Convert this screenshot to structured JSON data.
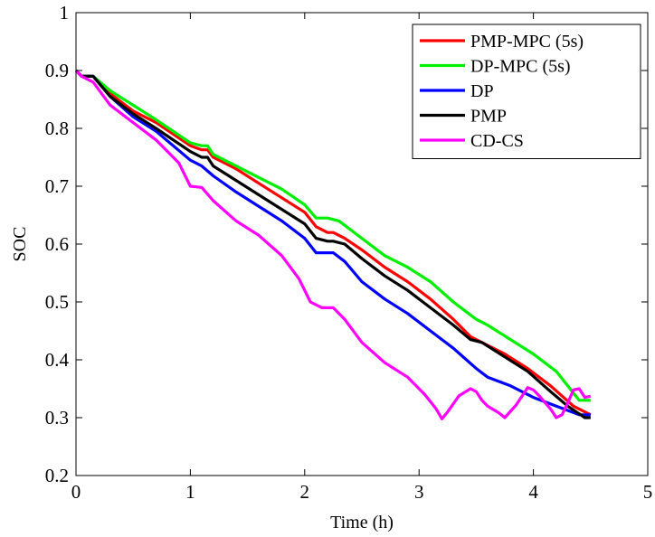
{
  "chart_data": {
    "type": "line",
    "title": "",
    "xlabel": "Time (h)",
    "ylabel": "SOC",
    "xlim": [
      0,
      5
    ],
    "ylim": [
      0.2,
      1
    ],
    "xticks": [
      "0",
      "1",
      "2",
      "3",
      "4",
      "5"
    ],
    "yticks": [
      "0.2",
      "0.3",
      "0.4",
      "0.5",
      "0.6",
      "0.7",
      "0.8",
      "0.9",
      "1"
    ],
    "grid": false,
    "legend_position": "top-right",
    "series": [
      {
        "name": "PMP-MPC (5s)",
        "color": "#ff0000",
        "x": [
          0,
          0.05,
          0.15,
          0.3,
          0.5,
          0.7,
          1.0,
          1.1,
          1.15,
          1.2,
          1.4,
          1.6,
          1.8,
          2.0,
          2.1,
          2.2,
          2.25,
          2.35,
          2.5,
          2.7,
          2.9,
          3.1,
          3.3,
          3.45,
          3.55,
          3.75,
          3.95,
          4.15,
          4.35,
          4.5
        ],
        "y": [
          0.9,
          0.89,
          0.89,
          0.86,
          0.83,
          0.81,
          0.77,
          0.763,
          0.763,
          0.75,
          0.73,
          0.705,
          0.68,
          0.655,
          0.63,
          0.62,
          0.62,
          0.61,
          0.59,
          0.56,
          0.535,
          0.505,
          0.47,
          0.44,
          0.43,
          0.41,
          0.385,
          0.355,
          0.32,
          0.305
        ]
      },
      {
        "name": "DP-MPC (5s)",
        "color": "#00ee00",
        "x": [
          0,
          0.05,
          0.15,
          0.3,
          0.5,
          0.7,
          1.0,
          1.1,
          1.15,
          1.2,
          1.4,
          1.6,
          1.8,
          2.0,
          2.1,
          2.2,
          2.3,
          2.5,
          2.7,
          2.9,
          3.1,
          3.3,
          3.5,
          3.6,
          3.8,
          4.0,
          4.2,
          4.4,
          4.5
        ],
        "y": [
          0.9,
          0.89,
          0.89,
          0.865,
          0.84,
          0.815,
          0.775,
          0.77,
          0.77,
          0.755,
          0.735,
          0.715,
          0.695,
          0.668,
          0.645,
          0.645,
          0.64,
          0.61,
          0.58,
          0.56,
          0.535,
          0.5,
          0.47,
          0.46,
          0.435,
          0.41,
          0.38,
          0.33,
          0.33
        ]
      },
      {
        "name": "DP",
        "color": "#0000ff",
        "x": [
          0,
          0.05,
          0.15,
          0.3,
          0.5,
          0.7,
          1.0,
          1.1,
          1.2,
          1.4,
          1.6,
          1.8,
          2.0,
          2.1,
          2.25,
          2.35,
          2.5,
          2.7,
          2.9,
          3.1,
          3.3,
          3.5,
          3.6,
          3.8,
          4.0,
          4.2,
          4.4,
          4.5
        ],
        "y": [
          0.9,
          0.89,
          0.89,
          0.855,
          0.82,
          0.795,
          0.745,
          0.735,
          0.718,
          0.69,
          0.665,
          0.64,
          0.61,
          0.585,
          0.585,
          0.57,
          0.535,
          0.505,
          0.48,
          0.45,
          0.42,
          0.385,
          0.37,
          0.355,
          0.335,
          0.32,
          0.305,
          0.305
        ]
      },
      {
        "name": "PMP",
        "color": "#000000",
        "x": [
          0,
          0.05,
          0.15,
          0.3,
          0.5,
          0.7,
          1.0,
          1.1,
          1.15,
          1.2,
          1.4,
          1.6,
          1.8,
          2.0,
          2.1,
          2.2,
          2.25,
          2.35,
          2.5,
          2.7,
          2.9,
          3.1,
          3.3,
          3.45,
          3.55,
          3.75,
          3.95,
          4.15,
          4.3,
          4.45,
          4.5
        ],
        "y": [
          0.9,
          0.89,
          0.89,
          0.855,
          0.825,
          0.8,
          0.76,
          0.75,
          0.75,
          0.735,
          0.71,
          0.685,
          0.66,
          0.635,
          0.61,
          0.605,
          0.605,
          0.6,
          0.575,
          0.545,
          0.52,
          0.49,
          0.46,
          0.435,
          0.43,
          0.405,
          0.38,
          0.345,
          0.32,
          0.3,
          0.3
        ]
      },
      {
        "name": "CD-CS",
        "color": "#ff00ff",
        "x": [
          0,
          0.05,
          0.15,
          0.3,
          0.5,
          0.7,
          0.9,
          1.0,
          1.1,
          1.2,
          1.4,
          1.6,
          1.8,
          1.95,
          2.05,
          2.15,
          2.25,
          2.35,
          2.5,
          2.7,
          2.9,
          3.05,
          3.15,
          3.2,
          3.25,
          3.35,
          3.45,
          3.5,
          3.55,
          3.6,
          3.7,
          3.75,
          3.85,
          3.95,
          4.0,
          4.05,
          4.15,
          4.2,
          4.25,
          4.3,
          4.35,
          4.4,
          4.45,
          4.5
        ],
        "y": [
          0.9,
          0.89,
          0.88,
          0.84,
          0.81,
          0.78,
          0.74,
          0.7,
          0.698,
          0.675,
          0.64,
          0.615,
          0.58,
          0.54,
          0.5,
          0.49,
          0.49,
          0.47,
          0.43,
          0.395,
          0.37,
          0.34,
          0.315,
          0.298,
          0.31,
          0.338,
          0.35,
          0.345,
          0.33,
          0.32,
          0.308,
          0.3,
          0.322,
          0.352,
          0.348,
          0.338,
          0.315,
          0.3,
          0.305,
          0.325,
          0.348,
          0.35,
          0.335,
          0.337
        ]
      }
    ]
  }
}
